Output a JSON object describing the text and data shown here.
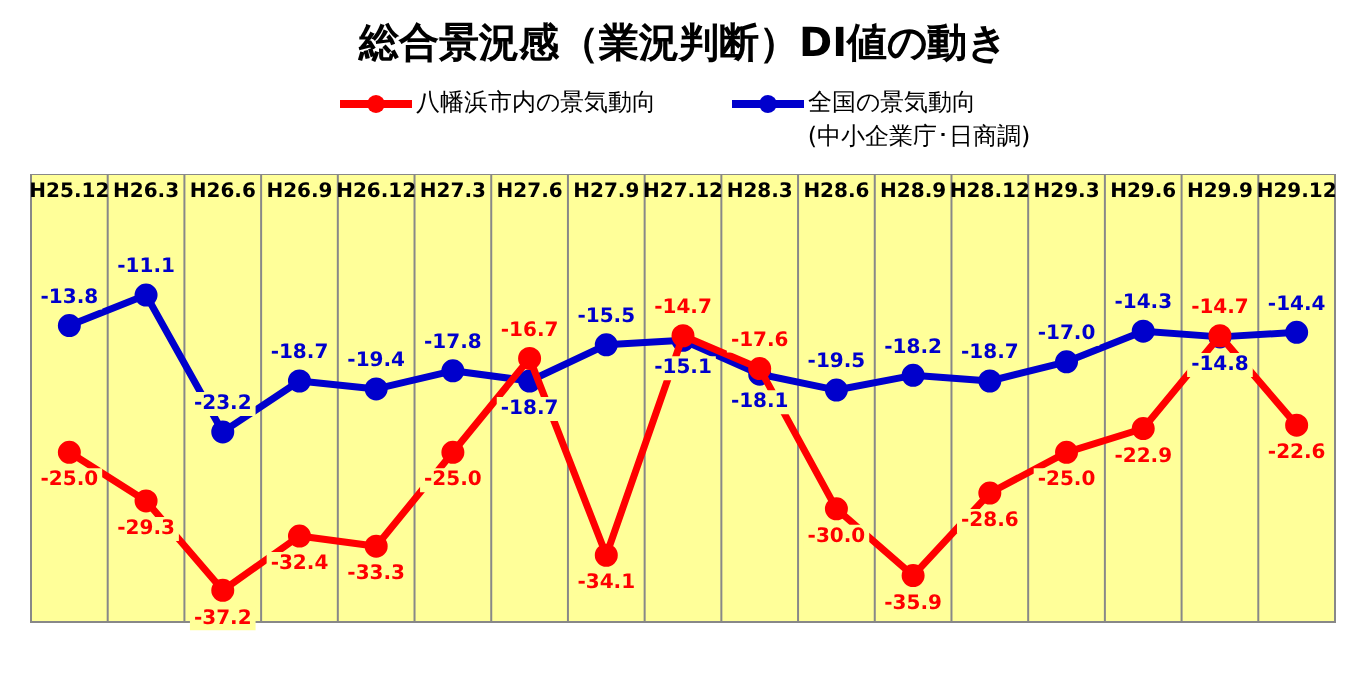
{
  "chart_data": {
    "type": "line",
    "title": "総合景況感（業況判断）DI値の動き",
    "categories": [
      "H25.12",
      "H26.3",
      "H26.6",
      "H26.9",
      "H26.12",
      "H27.3",
      "H27.6",
      "H27.9",
      "H27.12",
      "H28.3",
      "H28.6",
      "H28.9",
      "H28.12",
      "H29.3",
      "H29.6",
      "H29.9",
      "H29.12"
    ],
    "series": [
      {
        "name": "八幡浜市内の景気動向",
        "color": "#ff0000",
        "values": [
          -25.0,
          -29.3,
          -37.2,
          -32.4,
          -33.3,
          -25.0,
          -16.7,
          -34.1,
          -14.7,
          -17.6,
          -30.0,
          -35.9,
          -28.6,
          -25.0,
          -22.9,
          -14.7,
          -22.6
        ],
        "value_labels": [
          "-25.0",
          "-29.3",
          "-37.2",
          "-32.4",
          "-33.3",
          "-25.0",
          "-16.7",
          "-34.1",
          "-14.7",
          "-17.6",
          "-30.0",
          "-35.9",
          "-28.6",
          "-25.0",
          "-22.9",
          "-14.7",
          "-22.6"
        ]
      },
      {
        "name": "全国の景気動向",
        "color": "#0000cc",
        "values": [
          -13.8,
          -11.1,
          -23.2,
          -18.7,
          -19.4,
          -17.8,
          -18.7,
          -15.5,
          -15.1,
          -18.1,
          -19.5,
          -18.2,
          -18.7,
          -17.0,
          -14.3,
          -14.8,
          -14.4
        ],
        "value_labels": [
          "-13.8",
          "-11.1",
          "-23.2",
          "-18.7",
          "-19.4",
          "-17.8",
          "-18.7",
          "-15.5",
          "-15.1",
          "-18.1",
          "-19.5",
          "-18.2",
          "-18.7",
          "-17.0",
          "-14.3",
          "-14.8",
          "-14.4"
        ]
      }
    ],
    "annotations": [
      "(中小企業庁･日商調)"
    ],
    "grid": "x",
    "legend": "top",
    "marker": "circle",
    "line_style": "solid"
  }
}
